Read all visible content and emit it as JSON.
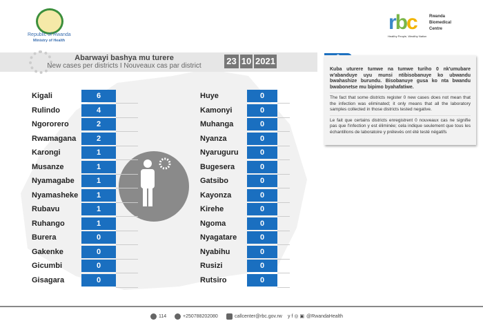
{
  "header": {
    "left_logo": {
      "line1": "Republic of Rwanda",
      "line2": "Ministry of Health"
    },
    "right_logo": {
      "letters": "rbc",
      "name_lines": [
        "Rwanda",
        "Biomedical",
        "Centre"
      ],
      "tagline": "Healthy People, Wealthy Nation"
    }
  },
  "title": {
    "kinyarwanda": "Abarwayi bashya mu turere",
    "subtitle": "New cases per districts  I  Nouveaux cas par district",
    "date": {
      "day": "23",
      "month": "10",
      "year": "2021"
    }
  },
  "left_districts": [
    {
      "name": "Kigali",
      "cases": "6"
    },
    {
      "name": "Rulindo",
      "cases": "4"
    },
    {
      "name": "Ngororero",
      "cases": "2"
    },
    {
      "name": "Rwamagana",
      "cases": "2"
    },
    {
      "name": "Karongi",
      "cases": "1"
    },
    {
      "name": "Musanze",
      "cases": "1"
    },
    {
      "name": "Nyamagabe",
      "cases": "1"
    },
    {
      "name": "Nyamasheke",
      "cases": "1"
    },
    {
      "name": "Rubavu",
      "cases": "1"
    },
    {
      "name": "Ruhango",
      "cases": "1"
    },
    {
      "name": "Burera",
      "cases": "0"
    },
    {
      "name": "Gakenke",
      "cases": "0"
    },
    {
      "name": "Gicumbi",
      "cases": "0"
    },
    {
      "name": "Gisagara",
      "cases": "0"
    }
  ],
  "right_districts": [
    {
      "name": "Huye",
      "cases": "0"
    },
    {
      "name": "Kamonyi",
      "cases": "0"
    },
    {
      "name": "Muhanga",
      "cases": "0"
    },
    {
      "name": "Nyanza",
      "cases": "0"
    },
    {
      "name": "Nyaruguru",
      "cases": "0"
    },
    {
      "name": "Bugesera",
      "cases": "0"
    },
    {
      "name": "Gatsibo",
      "cases": "0"
    },
    {
      "name": "Kayonza",
      "cases": "0"
    },
    {
      "name": "Kirehe",
      "cases": "0"
    },
    {
      "name": "Ngoma",
      "cases": "0"
    },
    {
      "name": "Nyagatare",
      "cases": "0"
    },
    {
      "name": "Nyabihu",
      "cases": "0"
    },
    {
      "name": "Rusizi",
      "cases": "0"
    },
    {
      "name": "Rutsiro",
      "cases": "0"
    }
  ],
  "note": {
    "marker": "*",
    "kinyarwanda": "Kuba uturere tumwe na tumwe turiho 0 nk'umubare w'abanduye  uyu munsi ntibisobanuye ko ubwandu bwahashize burundu. Bisobanuye gusa ko nta bwandu bwabonetse mu bipimo byahafatiwe.",
    "english": "The fact that some districts register 0 new cases does not mean that the infection was eliminated; it only means that all the laboratory samples collected in those districts tested negative.",
    "french": "Le fait que certains districts enregistrent 0 nouveaux cas ne signifie pas que l'infection y est éliminée; cela indique seulement que tous les échantillons de laboratoire y prélevés ont été testé négatifs"
  },
  "footer": {
    "hotline": "114",
    "phone": "+250788202080",
    "email": "callcenter@rbc.gov.rw",
    "social_handle": "@RwandaHealth",
    "social_icons": "y f ◎ ▣"
  },
  "colors": {
    "accent": "#1a6fc0",
    "rbc_blue": "#3a87c8",
    "rbc_green": "#7ab648",
    "rbc_yellow": "#f2b400"
  }
}
